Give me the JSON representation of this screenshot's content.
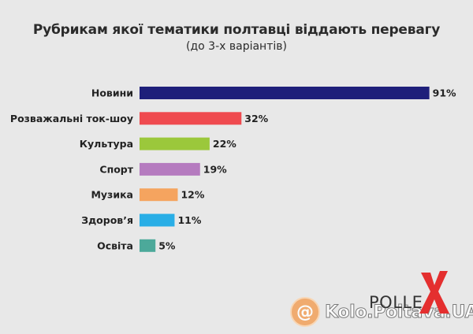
{
  "chart_data": {
    "type": "bar",
    "orientation": "horizontal",
    "title": "Рубрикам якої тематики полтавці віддають перевагу",
    "subtitle": "(до 3-х варіантів)",
    "categories": [
      "Новини",
      "Розважальні ток-шоу",
      "Культура",
      "Спорт",
      "Музика",
      "Здоров’я",
      "Освіта"
    ],
    "values": [
      91,
      32,
      22,
      19,
      12,
      11,
      5
    ],
    "value_labels": [
      "91%",
      "32%",
      "22%",
      "19%",
      "12%",
      "11%",
      "5%"
    ],
    "colors": [
      "#1e1f7a",
      "#ef4a4f",
      "#9bc83b",
      "#b57bbf",
      "#f5a45f",
      "#29aee6",
      "#4ca99a"
    ],
    "unit": "%",
    "xlim": [
      0,
      100
    ],
    "grid": false,
    "legend": "none"
  },
  "branding": {
    "logo_text": "POLLE",
    "logo_mark_color": "#e42f2f",
    "watermark_symbol": "@",
    "watermark_text": "Kolo.Poltava.UA"
  }
}
